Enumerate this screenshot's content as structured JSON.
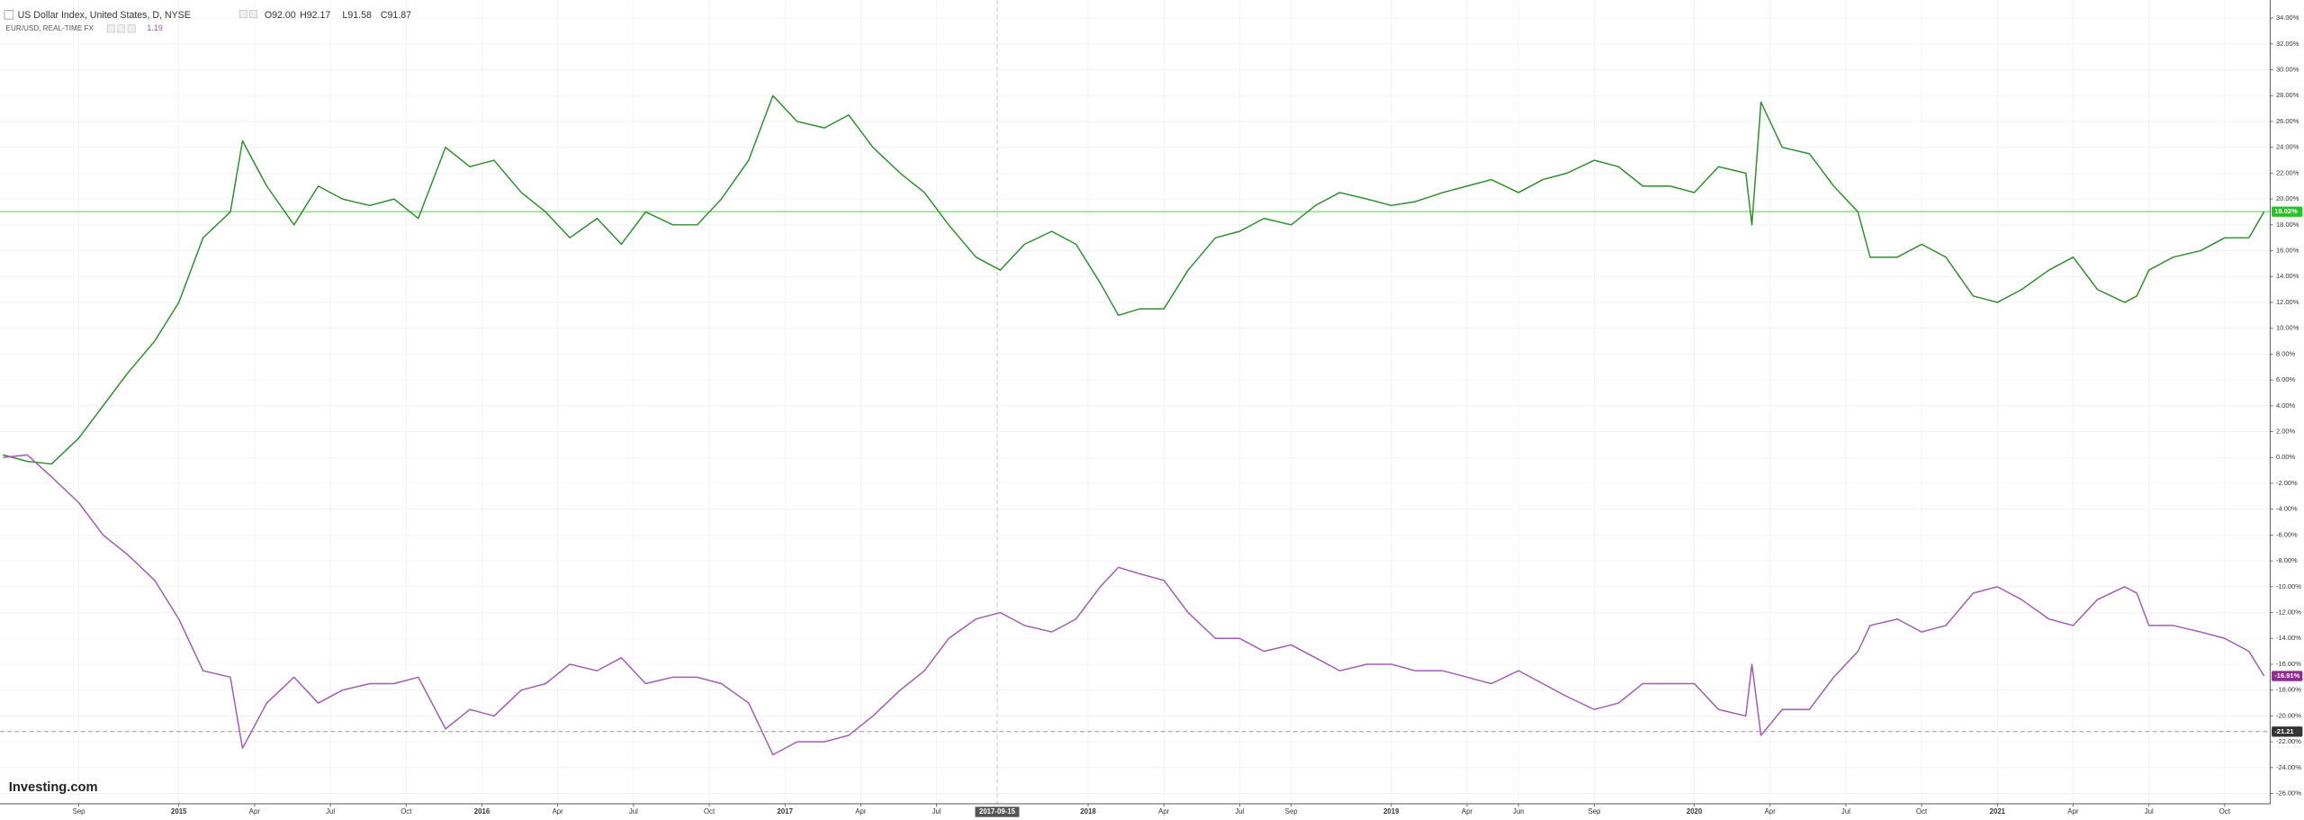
{
  "chart_data": {
    "type": "line",
    "header": {
      "symbol": "US Dollar Index, United States, D, NYSE",
      "open": "O92.00",
      "high": "H92.17",
      "low": "L91.58",
      "close": "C91.87",
      "compare": "EUR/USD, REAL-TIME FX",
      "compare_value": "1.19"
    },
    "watermark": "Investing.com",
    "xlim": [
      2014.41,
      2021.9
    ],
    "ylim": [
      -26.8,
      35.4
    ],
    "grid": true,
    "yticks": [
      {
        "value": -26,
        "label": "-26.00%"
      },
      {
        "value": -24,
        "label": "-24.00%"
      },
      {
        "value": -22,
        "label": "-22.00%"
      },
      {
        "value": -20,
        "label": "-20.00%"
      },
      {
        "value": -18,
        "label": "-18.00%"
      },
      {
        "value": -16,
        "label": "-16.00%"
      },
      {
        "value": -14,
        "label": "-14.00%"
      },
      {
        "value": -12,
        "label": "-12.00%"
      },
      {
        "value": -10,
        "label": "-10.00%"
      },
      {
        "value": -8,
        "label": "-8.00%"
      },
      {
        "value": -6,
        "label": "-6.00%"
      },
      {
        "value": -4,
        "label": "-4.00%"
      },
      {
        "value": -2,
        "label": "-2.00%"
      },
      {
        "value": 0,
        "label": "0.00%"
      },
      {
        "value": 2,
        "label": "2.00%"
      },
      {
        "value": 4,
        "label": "4.00%"
      },
      {
        "value": 6,
        "label": "6.00%"
      },
      {
        "value": 8,
        "label": "8.00%"
      },
      {
        "value": 10,
        "label": "10.00%"
      },
      {
        "value": 12,
        "label": "12.00%"
      },
      {
        "value": 14,
        "label": "14.00%"
      },
      {
        "value": 16,
        "label": "16.00%"
      },
      {
        "value": 18,
        "label": "18.00%"
      },
      {
        "value": 20,
        "label": "20.00%"
      },
      {
        "value": 22,
        "label": "22.00%"
      },
      {
        "value": 24,
        "label": "24.00%"
      },
      {
        "value": 26,
        "label": "26.00%"
      },
      {
        "value": 28,
        "label": "28.00%"
      },
      {
        "value": 30,
        "label": "30.00%"
      },
      {
        "value": 32,
        "label": "32.00%"
      },
      {
        "value": 34,
        "label": "34.00%"
      }
    ],
    "xticks": [
      {
        "value": 2014.67,
        "label": "Sep"
      },
      2015,
      {
        "value": 2015.25,
        "label": "Apr"
      },
      {
        "value": 2015.5,
        "label": "Jul"
      },
      {
        "value": 2015.75,
        "label": "Oct"
      },
      2016,
      {
        "value": 2016.25,
        "label": "Apr"
      },
      {
        "value": 2016.5,
        "label": "Jul"
      },
      {
        "value": 2016.75,
        "label": "Oct"
      },
      2017,
      {
        "value": 2017.25,
        "label": "Apr"
      },
      {
        "value": 2017.5,
        "label": "Jul"
      },
      2018,
      {
        "value": 2018.25,
        "label": "Apr"
      },
      {
        "value": 2018.5,
        "label": "Jul"
      },
      {
        "value": 2018.67,
        "label": "Sep"
      },
      2019,
      {
        "value": 2019.25,
        "label": "Apr"
      },
      {
        "value": 2019.42,
        "label": "Jun"
      },
      {
        "value": 2019.67,
        "label": "Sep"
      },
      2020,
      {
        "value": 2020.25,
        "label": "Apr"
      },
      {
        "value": 2020.5,
        "label": "Jul"
      },
      {
        "value": 2020.75,
        "label": "Oct"
      },
      2021,
      {
        "value": 2021.25,
        "label": "Apr"
      },
      {
        "value": 2021.5,
        "label": "Jul"
      },
      {
        "value": 2021.75,
        "label": "Oct"
      }
    ],
    "crosshair": {
      "value": 2017.7,
      "label": "2017-09-15"
    },
    "x": [
      2014.42,
      2014.5,
      2014.58,
      2014.67,
      2014.75,
      2014.83,
      2014.92,
      2015.0,
      2015.08,
      2015.17,
      2015.21,
      2015.29,
      2015.38,
      2015.46,
      2015.54,
      2015.63,
      2015.71,
      2015.79,
      2015.88,
      2015.96,
      2016.04,
      2016.13,
      2016.21,
      2016.29,
      2016.38,
      2016.46,
      2016.54,
      2016.63,
      2016.71,
      2016.79,
      2016.88,
      2016.96,
      2017.04,
      2017.13,
      2017.21,
      2017.29,
      2017.38,
      2017.46,
      2017.54,
      2017.63,
      2017.71,
      2017.79,
      2017.88,
      2017.96,
      2018.04,
      2018.1,
      2018.17,
      2018.25,
      2018.33,
      2018.42,
      2018.5,
      2018.58,
      2018.67,
      2018.75,
      2018.83,
      2018.92,
      2019.0,
      2019.08,
      2019.17,
      2019.25,
      2019.33,
      2019.42,
      2019.5,
      2019.58,
      2019.67,
      2019.75,
      2019.83,
      2019.92,
      2020.0,
      2020.08,
      2020.17,
      2020.19,
      2020.22,
      2020.29,
      2020.38,
      2020.46,
      2020.54,
      2020.58,
      2020.67,
      2020.75,
      2020.83,
      2020.92,
      2021.0,
      2021.08,
      2021.17,
      2021.25,
      2021.33,
      2021.42,
      2021.46,
      2021.5,
      2021.58,
      2021.67,
      2021.75,
      2021.83,
      2021.88
    ],
    "series": [
      {
        "name": "US Dollar Index",
        "color": "#2e8b2e",
        "values": [
          0.2,
          -0.3,
          -0.5,
          1.5,
          4,
          6.5,
          9,
          12,
          17,
          19,
          24.5,
          21,
          18,
          21,
          20,
          19.5,
          20,
          18.5,
          24,
          22.5,
          23,
          20.5,
          19,
          17,
          18.5,
          16.5,
          19,
          18,
          18,
          20,
          23,
          28,
          26,
          25.5,
          26.5,
          24,
          22,
          20.5,
          18,
          15.5,
          14.5,
          16.5,
          17.5,
          16.5,
          13.5,
          11,
          11.5,
          11.5,
          14.5,
          17,
          17.5,
          18.5,
          18,
          19.5,
          20.5,
          20,
          19.5,
          19.8,
          20.5,
          21,
          21.5,
          20.5,
          21.5,
          22,
          23,
          22.5,
          21,
          21,
          20.5,
          22.5,
          22,
          18,
          27.5,
          24,
          23.5,
          21,
          19,
          15.5,
          15.5,
          16.5,
          15.5,
          12.5,
          12,
          13,
          14.5,
          15.5,
          13,
          12,
          12.5,
          14.5,
          15.5,
          16,
          17,
          17,
          19.02
        ]
      },
      {
        "name": "EUR/USD",
        "color": "#a05bb0",
        "values": [
          0,
          0.2,
          -1.5,
          -3.5,
          -6,
          -7.5,
          -9.5,
          -12.5,
          -16.5,
          -17,
          -22.5,
          -19,
          -17,
          -19,
          -18,
          -17.5,
          -17.5,
          -17,
          -21,
          -19.5,
          -20,
          -18,
          -17.5,
          -16,
          -16.5,
          -15.5,
          -17.5,
          -17,
          -17,
          -17.5,
          -19,
          -23,
          -22,
          -22,
          -21.5,
          -20,
          -18,
          -16.5,
          -14,
          -12.5,
          -12,
          -13,
          -13.5,
          -12.5,
          -10,
          -8.5,
          -9,
          -9.5,
          -12,
          -14,
          -14,
          -15,
          -14.5,
          -15.5,
          -16.5,
          -16,
          -16,
          -16.5,
          -16.5,
          -17,
          -17.5,
          -16.5,
          -17.5,
          -18.5,
          -19.5,
          -19,
          -17.5,
          -17.5,
          -17.5,
          -19.5,
          -20,
          -16,
          -21.5,
          -19.5,
          -19.5,
          -17,
          -15,
          -13,
          -12.5,
          -13.5,
          -13,
          -10.5,
          -10,
          -11,
          -12.5,
          -13,
          -11,
          -10,
          -10.5,
          -13,
          -13,
          -13.5,
          -14,
          -15,
          -16.91
        ]
      }
    ],
    "price_lines": [
      {
        "value": 19.02,
        "label": "19.02%",
        "color": "#27c227"
      },
      {
        "value": -16.91,
        "label": "-16.91%",
        "color": "#8e2b8e"
      },
      {
        "value": -21.21,
        "label": "-21.21",
        "color": "#333333"
      }
    ]
  }
}
